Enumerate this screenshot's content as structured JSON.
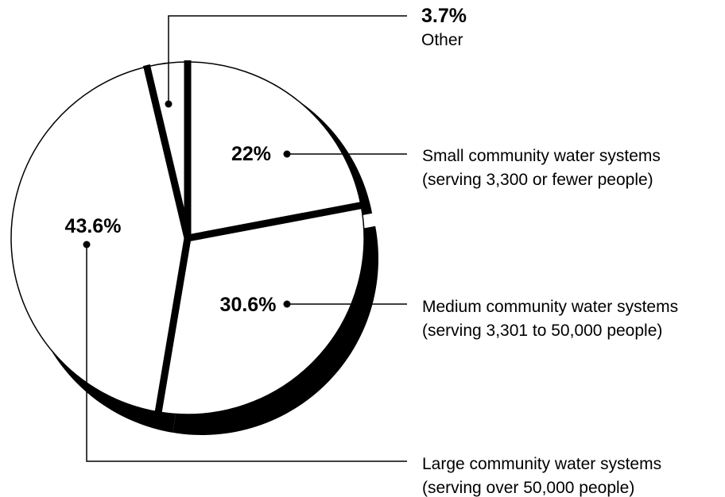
{
  "chart_data": {
    "type": "pie",
    "title": "",
    "slices": [
      {
        "value": 22.0,
        "label": "22%",
        "name_line1": "Small community water systems",
        "name_line2": "(serving 3,300 or fewer people)"
      },
      {
        "value": 30.6,
        "label": "30.6%",
        "name_line1": "Medium community water systems",
        "name_line2": "(serving 3,301 to 50,000 people)"
      },
      {
        "value": 43.6,
        "label": "43.6%",
        "name_line1": "Large community water systems",
        "name_line2": "(serving over 50,000 people)"
      },
      {
        "value": 3.7,
        "label": "3.7%",
        "name_line1": "Other",
        "name_line2": ""
      }
    ],
    "colors": {
      "fill": "#ffffff",
      "stroke": "#000000",
      "shadow": "#000000"
    }
  }
}
